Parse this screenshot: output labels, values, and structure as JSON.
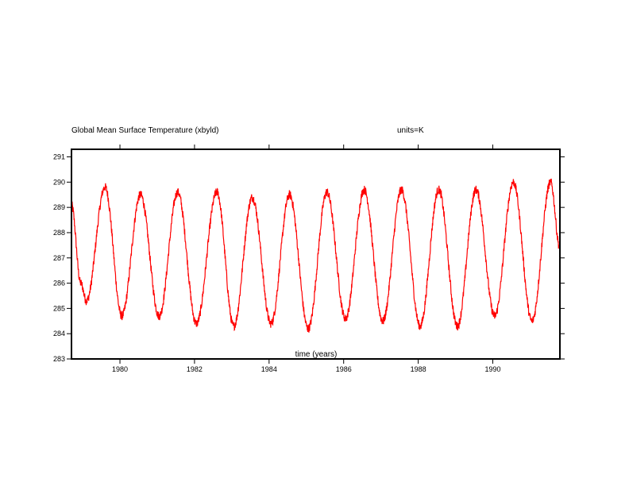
{
  "chart_data": {
    "type": "line",
    "title": "Global Mean Surface Temperature (xbyld)",
    "units_label": "units=K",
    "xlabel": "time (years)",
    "ylabel": "",
    "xlim": [
      1978.7,
      1991.8
    ],
    "ylim": [
      283,
      291.3
    ],
    "x_ticks": [
      1980,
      1982,
      1984,
      1986,
      1988,
      1990
    ],
    "x_tick_labels": [
      "1980",
      "1982",
      "1984",
      "1986",
      "1988",
      "1990"
    ],
    "y_ticks": [
      283,
      284,
      285,
      286,
      287,
      288,
      289,
      290,
      291
    ],
    "y_tick_labels": [
      "283",
      "284",
      "285",
      "286",
      "287",
      "288",
      "289",
      "290",
      "291"
    ],
    "grid": false,
    "series_color": "#ff0000",
    "series": [
      {
        "x": [
          1978.7,
          1978.95,
          1979.1,
          1979.6,
          1980.05,
          1980.55,
          1981.05,
          1981.55,
          1982.05,
          1982.6,
          1983.05,
          1983.55,
          1984.05,
          1984.55,
          1985.05,
          1985.55,
          1986.05,
          1986.55,
          1987.05,
          1987.55,
          1988.05,
          1988.55,
          1989.05,
          1989.55,
          1990.05,
          1990.55,
          1991.05,
          1991.55,
          1991.8
        ],
        "y": [
          289.1,
          286.0,
          285.3,
          289.8,
          284.7,
          289.5,
          284.7,
          289.6,
          284.4,
          289.6,
          284.3,
          289.4,
          284.4,
          289.5,
          284.2,
          289.6,
          284.6,
          289.7,
          284.5,
          289.7,
          284.3,
          289.7,
          284.3,
          289.7,
          284.7,
          290.0,
          284.5,
          290.0,
          287.4
        ]
      }
    ]
  }
}
